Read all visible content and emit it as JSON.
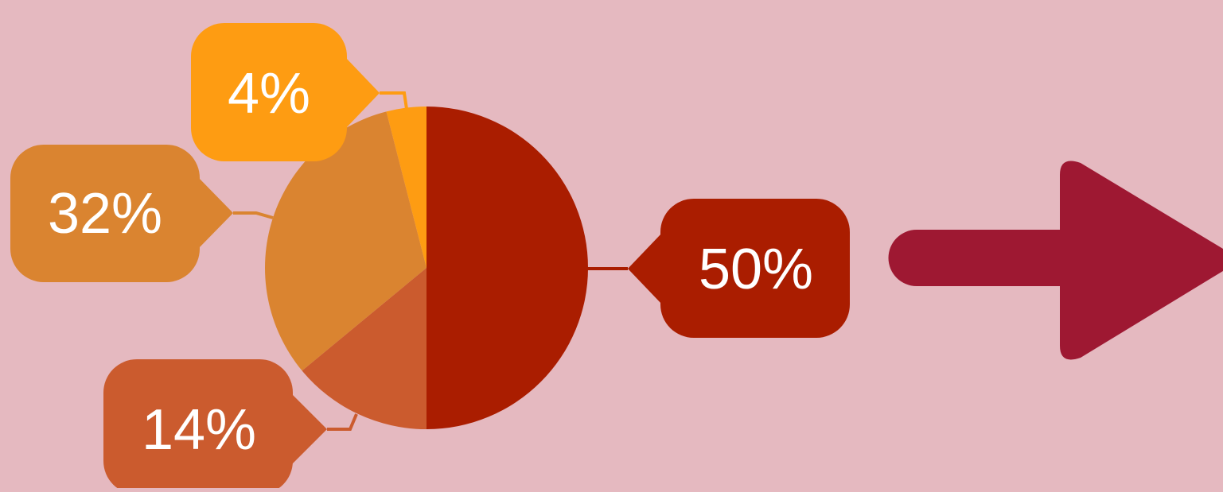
{
  "colors": {
    "background": "#e5b9c0",
    "arrow": "#9e1832"
  },
  "chart_data": {
    "type": "pie",
    "start_angle_deg": 0,
    "direction": "clockwise",
    "slices": [
      {
        "value": 50,
        "label": "50%",
        "color": "#aa1d00"
      },
      {
        "value": 14,
        "label": "14%",
        "color": "#cb5b2e"
      },
      {
        "value": 32,
        "label": "32%",
        "color": "#da8430"
      },
      {
        "value": 4,
        "label": "4%",
        "color": "#fe9c12"
      }
    ]
  }
}
